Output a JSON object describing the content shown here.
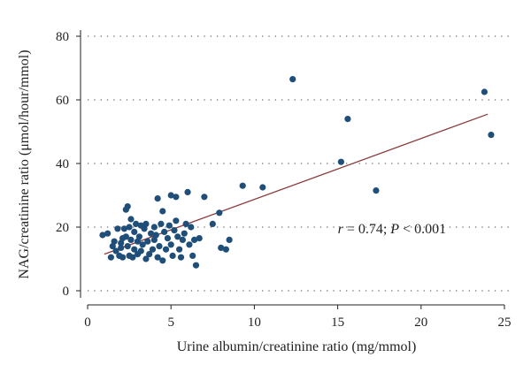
{
  "chart_data": {
    "type": "scatter",
    "title": "",
    "xlabel": "Urine albumin/creatinine ratio (mg/mmol)",
    "ylabel": "NAG/creatinine ratio (μmol/hour/mmol)",
    "xlim": [
      0,
      25
    ],
    "ylim": [
      0,
      80
    ],
    "x_ticks": [
      0,
      5,
      10,
      15,
      20,
      25
    ],
    "y_ticks": [
      0,
      20,
      40,
      60,
      80
    ],
    "grid": "horizontal dotted lines at y = 20, 40, 60",
    "annotation": {
      "r_symbol": "r",
      "r_text": " = 0.74; ",
      "p_symbol": "P",
      "p_text": " < 0.001",
      "x": 15.0,
      "y": 19.5
    },
    "regression_line": {
      "x": [
        1.0,
        24.0
      ],
      "y": [
        11.5,
        55.5
      ],
      "color": "#8b3a3a"
    },
    "point_color": "#1f4e79",
    "points": [
      [
        0.9,
        17.5
      ],
      [
        1.2,
        18.0
      ],
      [
        1.4,
        10.5
      ],
      [
        1.5,
        14.0
      ],
      [
        1.6,
        15.5
      ],
      [
        1.7,
        12.5
      ],
      [
        1.8,
        19.5
      ],
      [
        1.9,
        11.0
      ],
      [
        2.0,
        15.0
      ],
      [
        2.0,
        13.5
      ],
      [
        2.1,
        16.5
      ],
      [
        2.1,
        10.5
      ],
      [
        2.2,
        19.5
      ],
      [
        2.3,
        17.0
      ],
      [
        2.3,
        25.5
      ],
      [
        2.4,
        26.5
      ],
      [
        2.4,
        14.0
      ],
      [
        2.5,
        11.0
      ],
      [
        2.5,
        20.0
      ],
      [
        2.6,
        16.0
      ],
      [
        2.6,
        22.5
      ],
      [
        2.7,
        10.5
      ],
      [
        2.8,
        13.0
      ],
      [
        2.8,
        18.5
      ],
      [
        2.9,
        21.0
      ],
      [
        3.0,
        15.5
      ],
      [
        3.0,
        11.5
      ],
      [
        3.1,
        17.0
      ],
      [
        3.2,
        20.5
      ],
      [
        3.2,
        12.5
      ],
      [
        3.3,
        14.5
      ],
      [
        3.4,
        19.5
      ],
      [
        3.5,
        21.0
      ],
      [
        3.5,
        10.0
      ],
      [
        3.6,
        15.5
      ],
      [
        3.7,
        11.5
      ],
      [
        3.8,
        18.0
      ],
      [
        3.9,
        13.0
      ],
      [
        4.0,
        20.0
      ],
      [
        4.0,
        16.0
      ],
      [
        4.1,
        17.5
      ],
      [
        4.2,
        29.0
      ],
      [
        4.2,
        10.5
      ],
      [
        4.3,
        14.0
      ],
      [
        4.4,
        21.0
      ],
      [
        4.5,
        25.0
      ],
      [
        4.5,
        9.5
      ],
      [
        4.6,
        18.5
      ],
      [
        4.7,
        13.0
      ],
      [
        4.8,
        16.5
      ],
      [
        4.9,
        20.5
      ],
      [
        5.0,
        30.0
      ],
      [
        5.0,
        14.5
      ],
      [
        5.1,
        11.0
      ],
      [
        5.2,
        19.0
      ],
      [
        5.3,
        22.0
      ],
      [
        5.3,
        29.5
      ],
      [
        5.4,
        17.0
      ],
      [
        5.5,
        13.0
      ],
      [
        5.6,
        10.5
      ],
      [
        5.7,
        16.0
      ],
      [
        5.8,
        18.0
      ],
      [
        5.9,
        21.0
      ],
      [
        6.0,
        31.0
      ],
      [
        6.1,
        14.5
      ],
      [
        6.2,
        20.0
      ],
      [
        6.3,
        11.0
      ],
      [
        6.4,
        16.0
      ],
      [
        6.5,
        8.0
      ],
      [
        6.7,
        16.5
      ],
      [
        7.0,
        29.5
      ],
      [
        7.5,
        21.0
      ],
      [
        7.9,
        24.5
      ],
      [
        8.0,
        13.5
      ],
      [
        8.3,
        13.0
      ],
      [
        8.5,
        16.0
      ],
      [
        9.3,
        33.0
      ],
      [
        10.5,
        32.5
      ],
      [
        12.3,
        66.5
      ],
      [
        15.2,
        40.5
      ],
      [
        15.6,
        54.0
      ],
      [
        17.3,
        31.5
      ],
      [
        23.8,
        62.5
      ],
      [
        24.2,
        49.0
      ]
    ]
  }
}
